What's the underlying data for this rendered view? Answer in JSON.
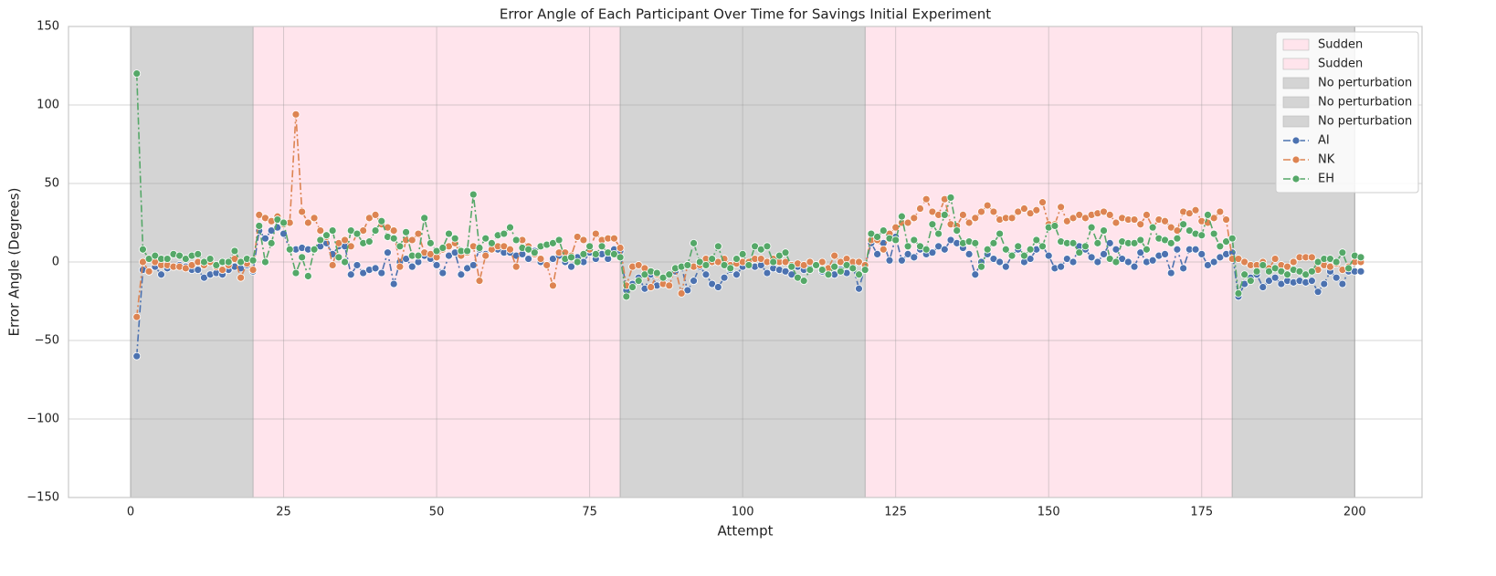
{
  "chart_data": {
    "type": "line",
    "title": "Error Angle of Each Participant Over Time for Savings Initial Experiment",
    "xlabel": "Attempt",
    "ylabel": "Error Angle (Degrees)",
    "xlim": [
      -10.15,
      211
    ],
    "ylim": [
      -150,
      150
    ],
    "xticks": [
      0,
      25,
      50,
      75,
      100,
      125,
      150,
      175,
      200
    ],
    "yticks": [
      {
        "value": -150,
        "label": "−150"
      },
      {
        "value": -100,
        "label": "−100"
      },
      {
        "value": -50,
        "label": "−50"
      },
      0,
      50,
      100,
      150
    ],
    "grid": true,
    "legend": "upper right",
    "regions": [
      {
        "name": "Sudden",
        "start": 20,
        "end": 80,
        "color": "#ffe4ec"
      },
      {
        "name": "Sudden",
        "start": 120,
        "end": 180,
        "color": "#ffe4ec"
      },
      {
        "name": "No perturbation",
        "start": 0,
        "end": 20,
        "color": "#d4d4d4"
      },
      {
        "name": "No perturbation",
        "start": 80,
        "end": 120,
        "color": "#d4d4d4"
      },
      {
        "name": "No perturbation",
        "start": 180,
        "end": 200,
        "color": "#d4d4d4"
      }
    ],
    "x": [
      1,
      2,
      3,
      4,
      5,
      6,
      7,
      8,
      9,
      10,
      11,
      12,
      13,
      14,
      15,
      16,
      17,
      18,
      19,
      20,
      21,
      22,
      23,
      24,
      25,
      26,
      27,
      28,
      29,
      30,
      31,
      32,
      33,
      34,
      35,
      36,
      37,
      38,
      39,
      40,
      41,
      42,
      43,
      44,
      45,
      46,
      47,
      48,
      49,
      50,
      51,
      52,
      53,
      54,
      55,
      56,
      57,
      58,
      59,
      60,
      61,
      62,
      63,
      64,
      65,
      66,
      67,
      68,
      69,
      70,
      71,
      72,
      73,
      74,
      75,
      76,
      77,
      78,
      79,
      80,
      81,
      82,
      83,
      84,
      85,
      86,
      87,
      88,
      89,
      90,
      91,
      92,
      93,
      94,
      95,
      96,
      97,
      98,
      99,
      100,
      101,
      102,
      103,
      104,
      105,
      106,
      107,
      108,
      109,
      110,
      111,
      112,
      113,
      114,
      115,
      116,
      117,
      118,
      119,
      120,
      121,
      122,
      123,
      124,
      125,
      126,
      127,
      128,
      129,
      130,
      131,
      132,
      133,
      134,
      135,
      136,
      137,
      138,
      139,
      140,
      141,
      142,
      143,
      144,
      145,
      146,
      147,
      148,
      149,
      150,
      151,
      152,
      153,
      154,
      155,
      156,
      157,
      158,
      159,
      160,
      161,
      162,
      163,
      164,
      165,
      166,
      167,
      168,
      169,
      170,
      171,
      172,
      173,
      174,
      175,
      176,
      177,
      178,
      179,
      180,
      181,
      182,
      183,
      184,
      185,
      186,
      187,
      188,
      189,
      190,
      191,
      192,
      193,
      194,
      195,
      196,
      197,
      198,
      199,
      200,
      201
    ],
    "series": [
      {
        "name": "AI",
        "color": "#4c72b0",
        "values": [
          -60,
          -5,
          -6,
          -3,
          -8,
          -4,
          -3,
          -2,
          -3,
          -5,
          -5,
          -10,
          -8,
          -7,
          -8,
          -5,
          -3,
          -4,
          -2,
          -6,
          20,
          15,
          20,
          22,
          18,
          8,
          8,
          9,
          8,
          8,
          10,
          12,
          5,
          10,
          10,
          -8,
          -2,
          -7,
          -5,
          -4,
          -7,
          6,
          -14,
          0,
          2,
          -3,
          0,
          4,
          2,
          -2,
          -7,
          4,
          6,
          -8,
          -4,
          -2,
          8,
          5,
          10,
          8,
          6,
          6,
          4,
          5,
          2,
          7,
          0,
          -2,
          2,
          4,
          0,
          -3,
          3,
          0,
          6,
          2,
          5,
          2,
          8,
          7,
          -18,
          -14,
          -10,
          -17,
          -8,
          -15,
          -12,
          -8,
          -6,
          -3,
          -18,
          -12,
          -3,
          -8,
          -14,
          -16,
          -10,
          -5,
          -8,
          -3,
          -1,
          -3,
          -2,
          -7,
          -4,
          -5,
          -6,
          -8,
          -3,
          -5,
          -3,
          -2,
          -6,
          -4,
          -8,
          -5,
          -7,
          -2,
          -17,
          -3,
          12,
          5,
          12,
          1,
          16,
          1,
          5,
          3,
          8,
          5,
          6,
          10,
          8,
          14,
          12,
          9,
          5,
          -8,
          0,
          5,
          2,
          0,
          -3,
          4,
          8,
          0,
          2,
          8,
          10,
          4,
          -4,
          -3,
          2,
          0,
          10,
          8,
          3,
          0,
          5,
          12,
          8,
          2,
          0,
          -3,
          6,
          0,
          1,
          4,
          5,
          -7,
          8,
          -4,
          8,
          8,
          5,
          -2,
          0,
          3,
          5,
          6,
          -22,
          -14,
          -10,
          -8,
          -16,
          -12,
          -10,
          -14,
          -12,
          -13,
          -12,
          -13,
          -12,
          -19,
          -14,
          -6,
          -10,
          -14,
          -6,
          -6,
          -6
        ]
      },
      {
        "name": "NK",
        "color": "#dd8452",
        "values": [
          -35,
          0,
          -6,
          0,
          -2,
          -2,
          -3,
          -3,
          -4,
          -2,
          0,
          -2,
          0,
          -3,
          -5,
          -2,
          2,
          -10,
          -1,
          -5,
          30,
          28,
          26,
          29,
          24,
          25,
          94,
          32,
          25,
          28,
          20,
          16,
          -2,
          12,
          14,
          10,
          18,
          20,
          28,
          30,
          24,
          22,
          20,
          -3,
          14,
          14,
          18,
          6,
          5,
          3,
          8,
          10,
          12,
          4,
          6,
          10,
          -12,
          4,
          8,
          10,
          10,
          8,
          -3,
          14,
          10,
          5,
          2,
          -2,
          -15,
          6,
          6,
          4,
          16,
          14,
          8,
          18,
          14,
          15,
          15,
          9,
          -15,
          -3,
          -2,
          -4,
          -16,
          -8,
          -14,
          -15,
          -4,
          -20,
          -2,
          -3,
          -2,
          2,
          0,
          0,
          2,
          -2,
          -1,
          0,
          0,
          2,
          2,
          0,
          2,
          0,
          0,
          -2,
          -1,
          -2,
          0,
          -2,
          0,
          -4,
          4,
          0,
          2,
          0,
          0,
          -2,
          14,
          14,
          8,
          18,
          22,
          25,
          25,
          28,
          34,
          40,
          32,
          30,
          40,
          24,
          23,
          30,
          25,
          28,
          32,
          36,
          32,
          27,
          28,
          28,
          32,
          34,
          31,
          33,
          38,
          24,
          24,
          35,
          26,
          28,
          30,
          28,
          30,
          31,
          32,
          30,
          25,
          28,
          27,
          27,
          24,
          30,
          22,
          27,
          26,
          22,
          20,
          32,
          31,
          33,
          26,
          25,
          28,
          32,
          27,
          2,
          2,
          0,
          -2,
          -2,
          0,
          -4,
          2,
          -2,
          -3,
          0,
          3,
          3,
          3,
          -5,
          -2,
          -3,
          -1,
          -5,
          -3,
          0,
          0
        ]
      },
      {
        "name": "EH",
        "color": "#55a868",
        "values": [
          120,
          8,
          2,
          4,
          2,
          2,
          5,
          4,
          2,
          4,
          5,
          0,
          2,
          -2,
          0,
          0,
          7,
          0,
          2,
          1,
          23,
          0,
          12,
          27,
          25,
          8,
          -7,
          3,
          -9,
          8,
          14,
          17,
          20,
          3,
          0,
          20,
          18,
          12,
          13,
          20,
          26,
          16,
          15,
          10,
          19,
          4,
          4,
          28,
          12,
          7,
          9,
          18,
          15,
          7,
          7,
          43,
          9,
          15,
          12,
          17,
          18,
          22,
          14,
          9,
          8,
          6,
          10,
          11,
          12,
          14,
          2,
          3,
          0,
          5,
          10,
          5,
          10,
          6,
          5,
          3,
          -22,
          -16,
          -12,
          -8,
          -6,
          -7,
          -10,
          -8,
          -4,
          -3,
          -2,
          12,
          0,
          -2,
          2,
          10,
          -2,
          -4,
          2,
          5,
          -2,
          10,
          8,
          10,
          0,
          4,
          6,
          -3,
          -10,
          -12,
          -5,
          -2,
          -5,
          -8,
          -3,
          -6,
          -2,
          -4,
          -8,
          -5,
          18,
          16,
          20,
          15,
          14,
          29,
          10,
          14,
          10,
          8,
          24,
          18,
          30,
          41,
          20,
          12,
          13,
          12,
          -3,
          8,
          12,
          18,
          8,
          4,
          10,
          4,
          8,
          14,
          10,
          22,
          23,
          13,
          12,
          12,
          6,
          10,
          22,
          12,
          20,
          2,
          0,
          13,
          12,
          12,
          14,
          8,
          22,
          15,
          14,
          12,
          15,
          24,
          20,
          18,
          17,
          30,
          18,
          10,
          13,
          15,
          -20,
          -8,
          -12,
          -6,
          -2,
          -6,
          -4,
          -6,
          -8,
          -5,
          -6,
          -8,
          -6,
          0,
          2,
          2,
          0,
          6,
          -4,
          4,
          3
        ]
      }
    ]
  }
}
